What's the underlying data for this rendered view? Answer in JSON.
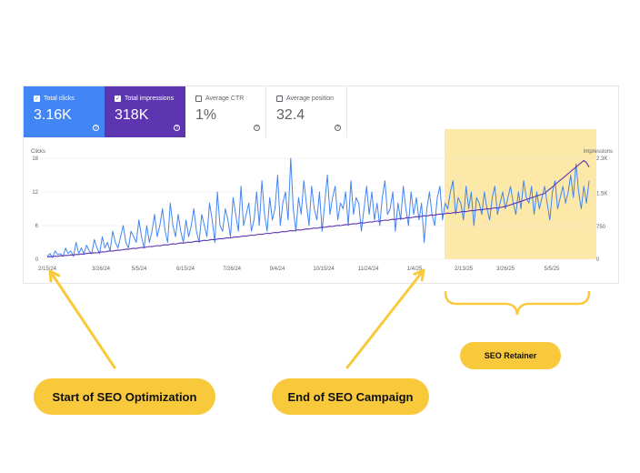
{
  "cards": [
    {
      "label": "Total clicks",
      "value": "3.16K",
      "checked": true
    },
    {
      "label": "Total impressions",
      "value": "318K",
      "checked": true
    },
    {
      "label": "Average CTR",
      "value": "1%",
      "checked": false
    },
    {
      "label": "Average position",
      "value": "32.4",
      "checked": false
    }
  ],
  "colors": {
    "clicks": "#4285f4",
    "impressions": "#5e35b1",
    "highlight": "#fce8a8",
    "annotation": "#f9c93c"
  },
  "annotations": {
    "start": "Start of SEO Optimization",
    "end": "End of SEO Campaign",
    "retainer": "SEO Retainer"
  },
  "chart_data": {
    "type": "line",
    "left_axis_title": "Clicks",
    "right_axis_title": "Impressions",
    "left_ticks": [
      "0",
      "6",
      "12",
      "18"
    ],
    "right_ticks": [
      "0",
      "750",
      "1.5K",
      "2.3K"
    ],
    "ylim_left": [
      0,
      18
    ],
    "ylim_right": [
      0,
      2300
    ],
    "x_ticks": [
      "2/15/24",
      "3/26/24",
      "5/5/24",
      "6/15/24",
      "7/26/24",
      "9/4/24",
      "10/15/24",
      "11/24/24",
      "1/4/25",
      "2/13/25",
      "3/26/25",
      "5/5/25"
    ],
    "highlight_range": [
      "2/13/25",
      "6/1/25"
    ],
    "series": [
      {
        "name": "Clicks",
        "axis": "left",
        "values": [
          0.5,
          1,
          0.3,
          1.5,
          0.8,
          1,
          0.5,
          2,
          1,
          1.5,
          0.5,
          3,
          1,
          2,
          1,
          2.5,
          1.5,
          1,
          3.5,
          2,
          1,
          4,
          2,
          3,
          1.5,
          5,
          3,
          2,
          4,
          6,
          3,
          2,
          5,
          4,
          3,
          7,
          4,
          2,
          6,
          3,
          5,
          8,
          4,
          6,
          9,
          5,
          3,
          10,
          6,
          4,
          8,
          5,
          3,
          7,
          4,
          6,
          9,
          5,
          3,
          8,
          6,
          4,
          10,
          7,
          3,
          12,
          6,
          5,
          9,
          7,
          4,
          11,
          8,
          5,
          13,
          6,
          8,
          10,
          5,
          7,
          12,
          6,
          14,
          8,
          5,
          11,
          7,
          9,
          15,
          6,
          10,
          12,
          7,
          18,
          9,
          5,
          11,
          8,
          14,
          10,
          6,
          13,
          9,
          7,
          12,
          5,
          10,
          15,
          8,
          11,
          13,
          7,
          10,
          9,
          12,
          6,
          14,
          8,
          11,
          10,
          5,
          9,
          13,
          8,
          12,
          7,
          10,
          6,
          11,
          14,
          8,
          9,
          12,
          5,
          10,
          7,
          13,
          9,
          6,
          12,
          8,
          11,
          7,
          10,
          3,
          9,
          12,
          8,
          6,
          11,
          13,
          7,
          10,
          9,
          12,
          14,
          8,
          11,
          10,
          7,
          13,
          9,
          12,
          6,
          11,
          10,
          8,
          12,
          9,
          7,
          11,
          13,
          8,
          10,
          12,
          9,
          11,
          13,
          10,
          8,
          12,
          9,
          14,
          11,
          10,
          13,
          8,
          12,
          9,
          11,
          13,
          10,
          7,
          12,
          14,
          9,
          11,
          13,
          10,
          12,
          15,
          11,
          17,
          12,
          9,
          13,
          10,
          14
        ]
      },
      {
        "name": "Impressions",
        "axis": "right",
        "values": [
          50,
          60,
          55,
          70,
          65,
          80,
          75,
          90,
          85,
          100,
          95,
          110,
          105,
          120,
          115,
          130,
          140,
          135,
          150,
          145,
          160,
          170,
          165,
          180,
          190,
          185,
          200,
          210,
          205,
          220,
          230,
          225,
          240,
          250,
          245,
          260,
          270,
          265,
          280,
          290,
          285,
          300,
          310,
          305,
          320,
          330,
          325,
          340,
          350,
          345,
          360,
          370,
          365,
          380,
          390,
          385,
          400,
          410,
          405,
          420,
          430,
          425,
          440,
          450,
          445,
          460,
          470,
          465,
          480,
          490,
          485,
          500,
          510,
          505,
          520,
          530,
          525,
          540,
          550,
          545,
          560,
          570,
          565,
          580,
          590,
          585,
          600,
          610,
          605,
          620,
          630,
          625,
          640,
          650,
          645,
          660,
          670,
          665,
          680,
          690,
          685,
          700,
          710,
          705,
          720,
          730,
          725,
          740,
          750,
          745,
          760,
          770,
          765,
          780,
          790,
          785,
          800,
          810,
          805,
          820,
          830,
          825,
          840,
          850,
          845,
          860,
          870,
          865,
          880,
          890,
          885,
          900,
          910,
          905,
          920,
          930,
          925,
          940,
          950,
          945,
          960,
          970,
          965,
          980,
          990,
          985,
          1000,
          1010,
          1005,
          1020,
          1030,
          1025,
          1040,
          1050,
          1045,
          1060,
          1070,
          1065,
          1080,
          1090,
          1085,
          1100,
          1110,
          1105,
          1120,
          1130,
          1125,
          1140,
          1150,
          1145,
          1160,
          1170,
          1165,
          1180,
          1190,
          1200,
          1220,
          1240,
          1260,
          1280,
          1300,
          1320,
          1340,
          1360,
          1380,
          1400,
          1420,
          1440,
          1460,
          1480,
          1500,
          1550,
          1600,
          1650,
          1700,
          1750,
          1800,
          1850,
          1900,
          1950,
          2000,
          2050,
          2100,
          2150,
          2200,
          2250,
          2200,
          2100
        ]
      }
    ]
  }
}
